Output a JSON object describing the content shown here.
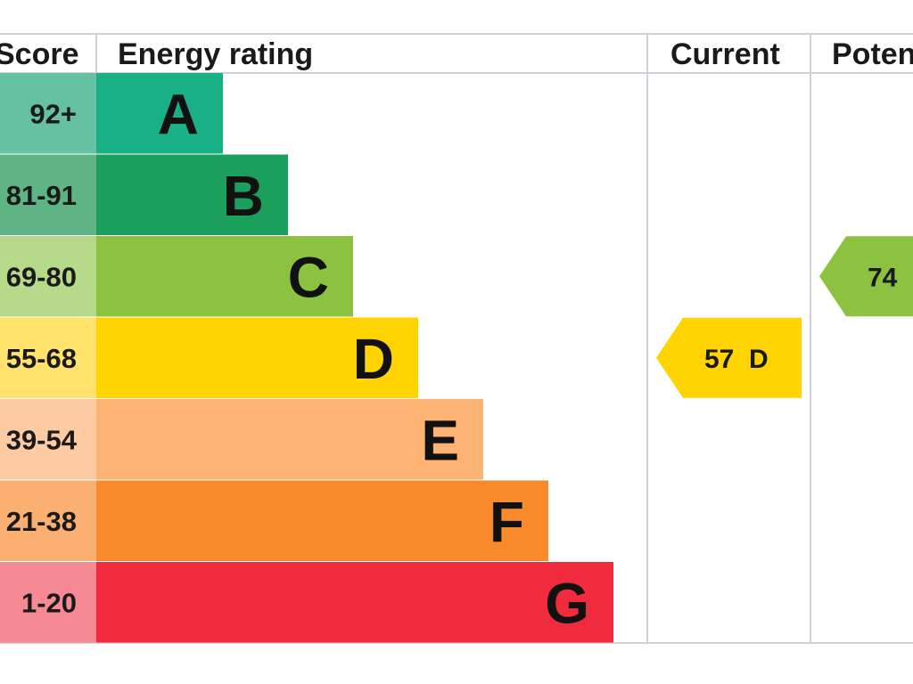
{
  "headers": {
    "score": "Score",
    "rating": "Energy rating",
    "current": "Current",
    "potential": "Poten"
  },
  "chart_data": {
    "type": "bar",
    "bands": [
      {
        "letter": "A",
        "range": "92+",
        "color": "#19b085",
        "score_bg": "#66c1a2",
        "upper": 100
      },
      {
        "letter": "B",
        "range": "81-91",
        "color": "#1aa05c",
        "score_bg": "#5fb485",
        "upper": 91
      },
      {
        "letter": "C",
        "range": "69-80",
        "color": "#8cc23f",
        "score_bg": "#b7d98a",
        "upper": 80
      },
      {
        "letter": "D",
        "range": "55-68",
        "color": "#ffd400",
        "score_bg": "#ffe36c",
        "upper": 68
      },
      {
        "letter": "E",
        "range": "39-54",
        "color": "#fcb373",
        "score_bg": "#fdcba3",
        "upper": 54
      },
      {
        "letter": "F",
        "range": "21-38",
        "color": "#f98a2b",
        "score_bg": "#fbb072",
        "upper": 38
      },
      {
        "letter": "G",
        "range": "1-20",
        "color": "#ef2b3d",
        "score_bg": "#f58a94",
        "upper": 20
      }
    ],
    "current": {
      "value": 57,
      "band": "D",
      "label": "57  D",
      "color": "#ffd400"
    },
    "potential": {
      "value": 74,
      "band": "C",
      "label": "74",
      "color": "#8cc23f"
    }
  }
}
